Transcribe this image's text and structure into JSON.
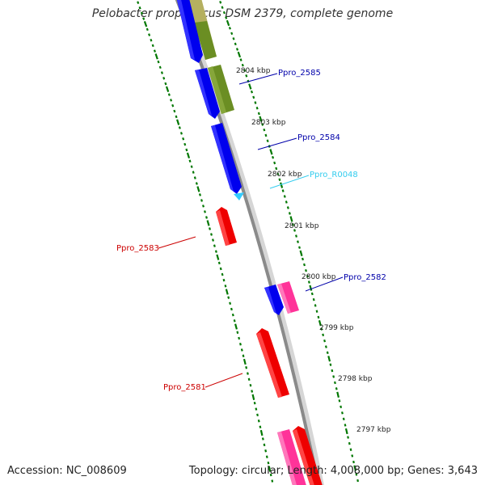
{
  "title": "Pelobacter propionicus DSM 2379, complete genome",
  "footer": {
    "accession": "Accession: NC_008609",
    "topology": "Topology: circular; Length: 4,008,000 bp; Genes: 3,643"
  },
  "colors": {
    "forward_cds": "#0000ff",
    "reverse_cds": "#ff0000",
    "olive": "#6b8e23",
    "tan": "#b5b060",
    "pink": "#ff3399",
    "rna": "#33ccff",
    "backbone": "#808080",
    "ticks": "#007700"
  },
  "kbp_ticks": [
    {
      "label": "2804 kbp"
    },
    {
      "label": "2803 kbp"
    },
    {
      "label": "2802 kbp"
    },
    {
      "label": "2801 kbp"
    },
    {
      "label": "2800 kbp"
    },
    {
      "label": "2799 kbp"
    },
    {
      "label": "2798 kbp"
    },
    {
      "label": "2797 kbp"
    }
  ],
  "gene_labels": [
    {
      "name": "Ppro_2585",
      "color": "#0000aa"
    },
    {
      "name": "Ppro_2584",
      "color": "#0000aa"
    },
    {
      "name": "Ppro_R0048",
      "color": "#33ccee"
    },
    {
      "name": "Ppro_2583",
      "color": "#cc0000"
    },
    {
      "name": "Ppro_2582",
      "color": "#0000aa"
    },
    {
      "name": "Ppro_2581",
      "color": "#cc0000"
    }
  ]
}
